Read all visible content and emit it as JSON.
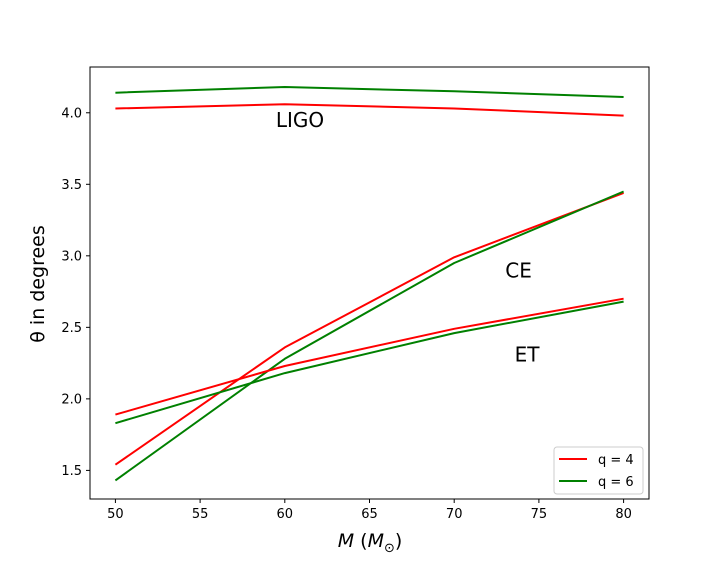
{
  "chart_data": {
    "type": "line",
    "title": "",
    "xlabel": "M (M☉)",
    "xlabel_parts": {
      "var": "M",
      "open": " (",
      "unit": "M",
      "sub": "⊙",
      "close": ")"
    },
    "ylabel": "θ in degrees",
    "x": [
      50,
      60,
      70,
      80
    ],
    "xlim": [
      48.5,
      81.5
    ],
    "ylim": [
      1.3,
      4.32
    ],
    "xticks": [
      50,
      55,
      60,
      65,
      70,
      75,
      80
    ],
    "xtick_labels": [
      "50",
      "55",
      "60",
      "65",
      "70",
      "75",
      "80"
    ],
    "yticks": [
      1.5,
      2.0,
      2.5,
      3.0,
      3.5,
      4.0
    ],
    "ytick_labels": [
      "1.5",
      "2.0",
      "2.5",
      "3.0",
      "3.5",
      "4.0"
    ],
    "series": [
      {
        "name": "q = 4",
        "detector": "LIGO",
        "color": "#ff0000",
        "values": [
          4.03,
          4.06,
          4.03,
          3.98
        ]
      },
      {
        "name": "q = 6",
        "detector": "LIGO",
        "color": "#008000",
        "values": [
          4.14,
          4.18,
          4.15,
          4.11
        ]
      },
      {
        "name": "q = 4",
        "detector": "CE",
        "color": "#ff0000",
        "values": [
          1.54,
          2.36,
          2.99,
          3.44
        ]
      },
      {
        "name": "q = 6",
        "detector": "CE",
        "color": "#008000",
        "values": [
          1.43,
          2.28,
          2.95,
          3.45
        ]
      },
      {
        "name": "q = 4",
        "detector": "ET",
        "color": "#ff0000",
        "values": [
          1.89,
          2.23,
          2.49,
          2.7
        ]
      },
      {
        "name": "q = 6",
        "detector": "ET",
        "color": "#008000",
        "values": [
          1.83,
          2.18,
          2.46,
          2.68
        ]
      }
    ],
    "annotations": [
      {
        "text": "LIGO",
        "x": 60.9,
        "y": 3.9
      },
      {
        "text": "CE",
        "x": 73.8,
        "y": 2.85
      },
      {
        "text": "ET",
        "x": 74.3,
        "y": 2.26
      }
    ],
    "legend": {
      "position": "lower-right",
      "entries": [
        {
          "label": "q = 4",
          "color": "#ff0000"
        },
        {
          "label": "q = 6",
          "color": "#008000"
        }
      ]
    },
    "grid": false
  }
}
